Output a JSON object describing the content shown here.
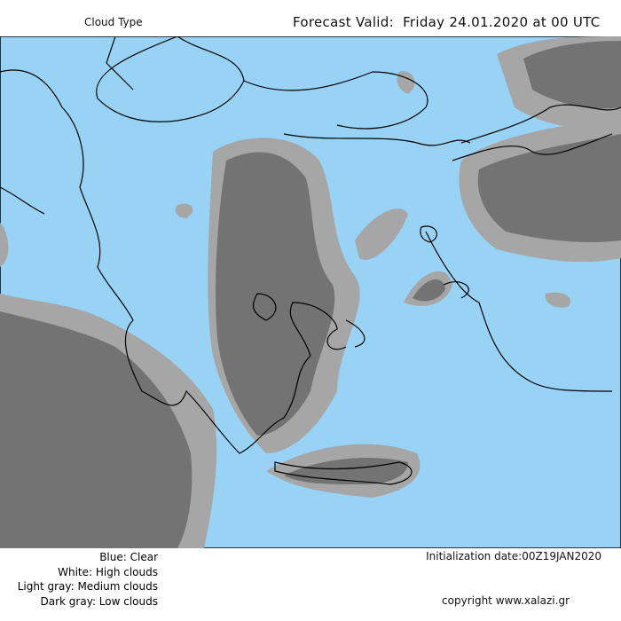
{
  "header": {
    "title": "Cloud Type",
    "forecast": "Forecast Valid:  Friday 24.01.2020 at 00 UTC"
  },
  "legend": {
    "items": [
      "Blue: Clear",
      "White: High clouds",
      "Light gray: Medium clouds",
      "Dark gray: Low clouds"
    ]
  },
  "footer": {
    "initialization": "Initialization date:00Z19JAN2020",
    "copyright": "copyright www.xalazi.gr"
  }
}
